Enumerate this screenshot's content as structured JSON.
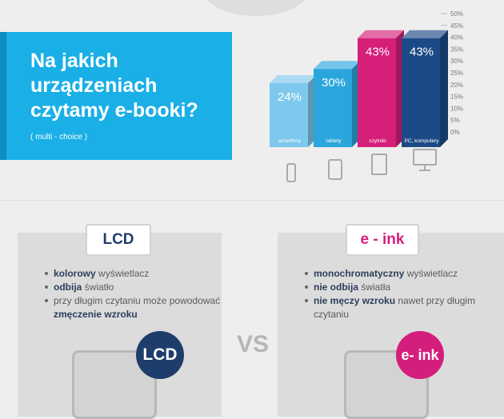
{
  "title": "Na jakich urządzeniach czytamy e-booki?",
  "subtitle": "( multi - choice )",
  "chart_data": {
    "type": "bar",
    "categories": [
      "smartfony",
      "tablety",
      "czytniki",
      "PC, komputery"
    ],
    "values": [
      24,
      30,
      43,
      43
    ],
    "value_labels": [
      "24%",
      "30%",
      "43%",
      "43%"
    ],
    "ylim": [
      0,
      50
    ],
    "yticks": [
      "0%",
      "5%",
      "10%",
      "15%",
      "20%",
      "25%",
      "30%",
      "35%",
      "40%",
      "45%",
      "50%"
    ],
    "colors": [
      "#7dc8ec",
      "#2aa6dc",
      "#d51f79",
      "#1c4a86"
    ],
    "grid": false
  },
  "lcd": {
    "label": "LCD",
    "circle_label": "LCD",
    "items": [
      {
        "bold": "kolorowy",
        "rest": " wyświetlacz"
      },
      {
        "bold": "odbija",
        "rest": " światło"
      },
      {
        "pre": "przy długim czytaniu może powodować ",
        "bold": "zmęczenie wzroku"
      }
    ]
  },
  "vs_text": "VS",
  "eink": {
    "label": "e - ink",
    "circle_label": "e- ink",
    "items": [
      {
        "bold": "monochromatyczny",
        "rest": " wyświetlacz"
      },
      {
        "bold": "nie odbija",
        "rest": " światła"
      },
      {
        "bold": "nie męczy wzroku",
        "rest": " nawet przy długim czytaniu"
      }
    ]
  },
  "colors": {
    "accent_blue": "#1aafe6",
    "navy": "#1f3d6b",
    "magenta": "#d41e7c"
  }
}
